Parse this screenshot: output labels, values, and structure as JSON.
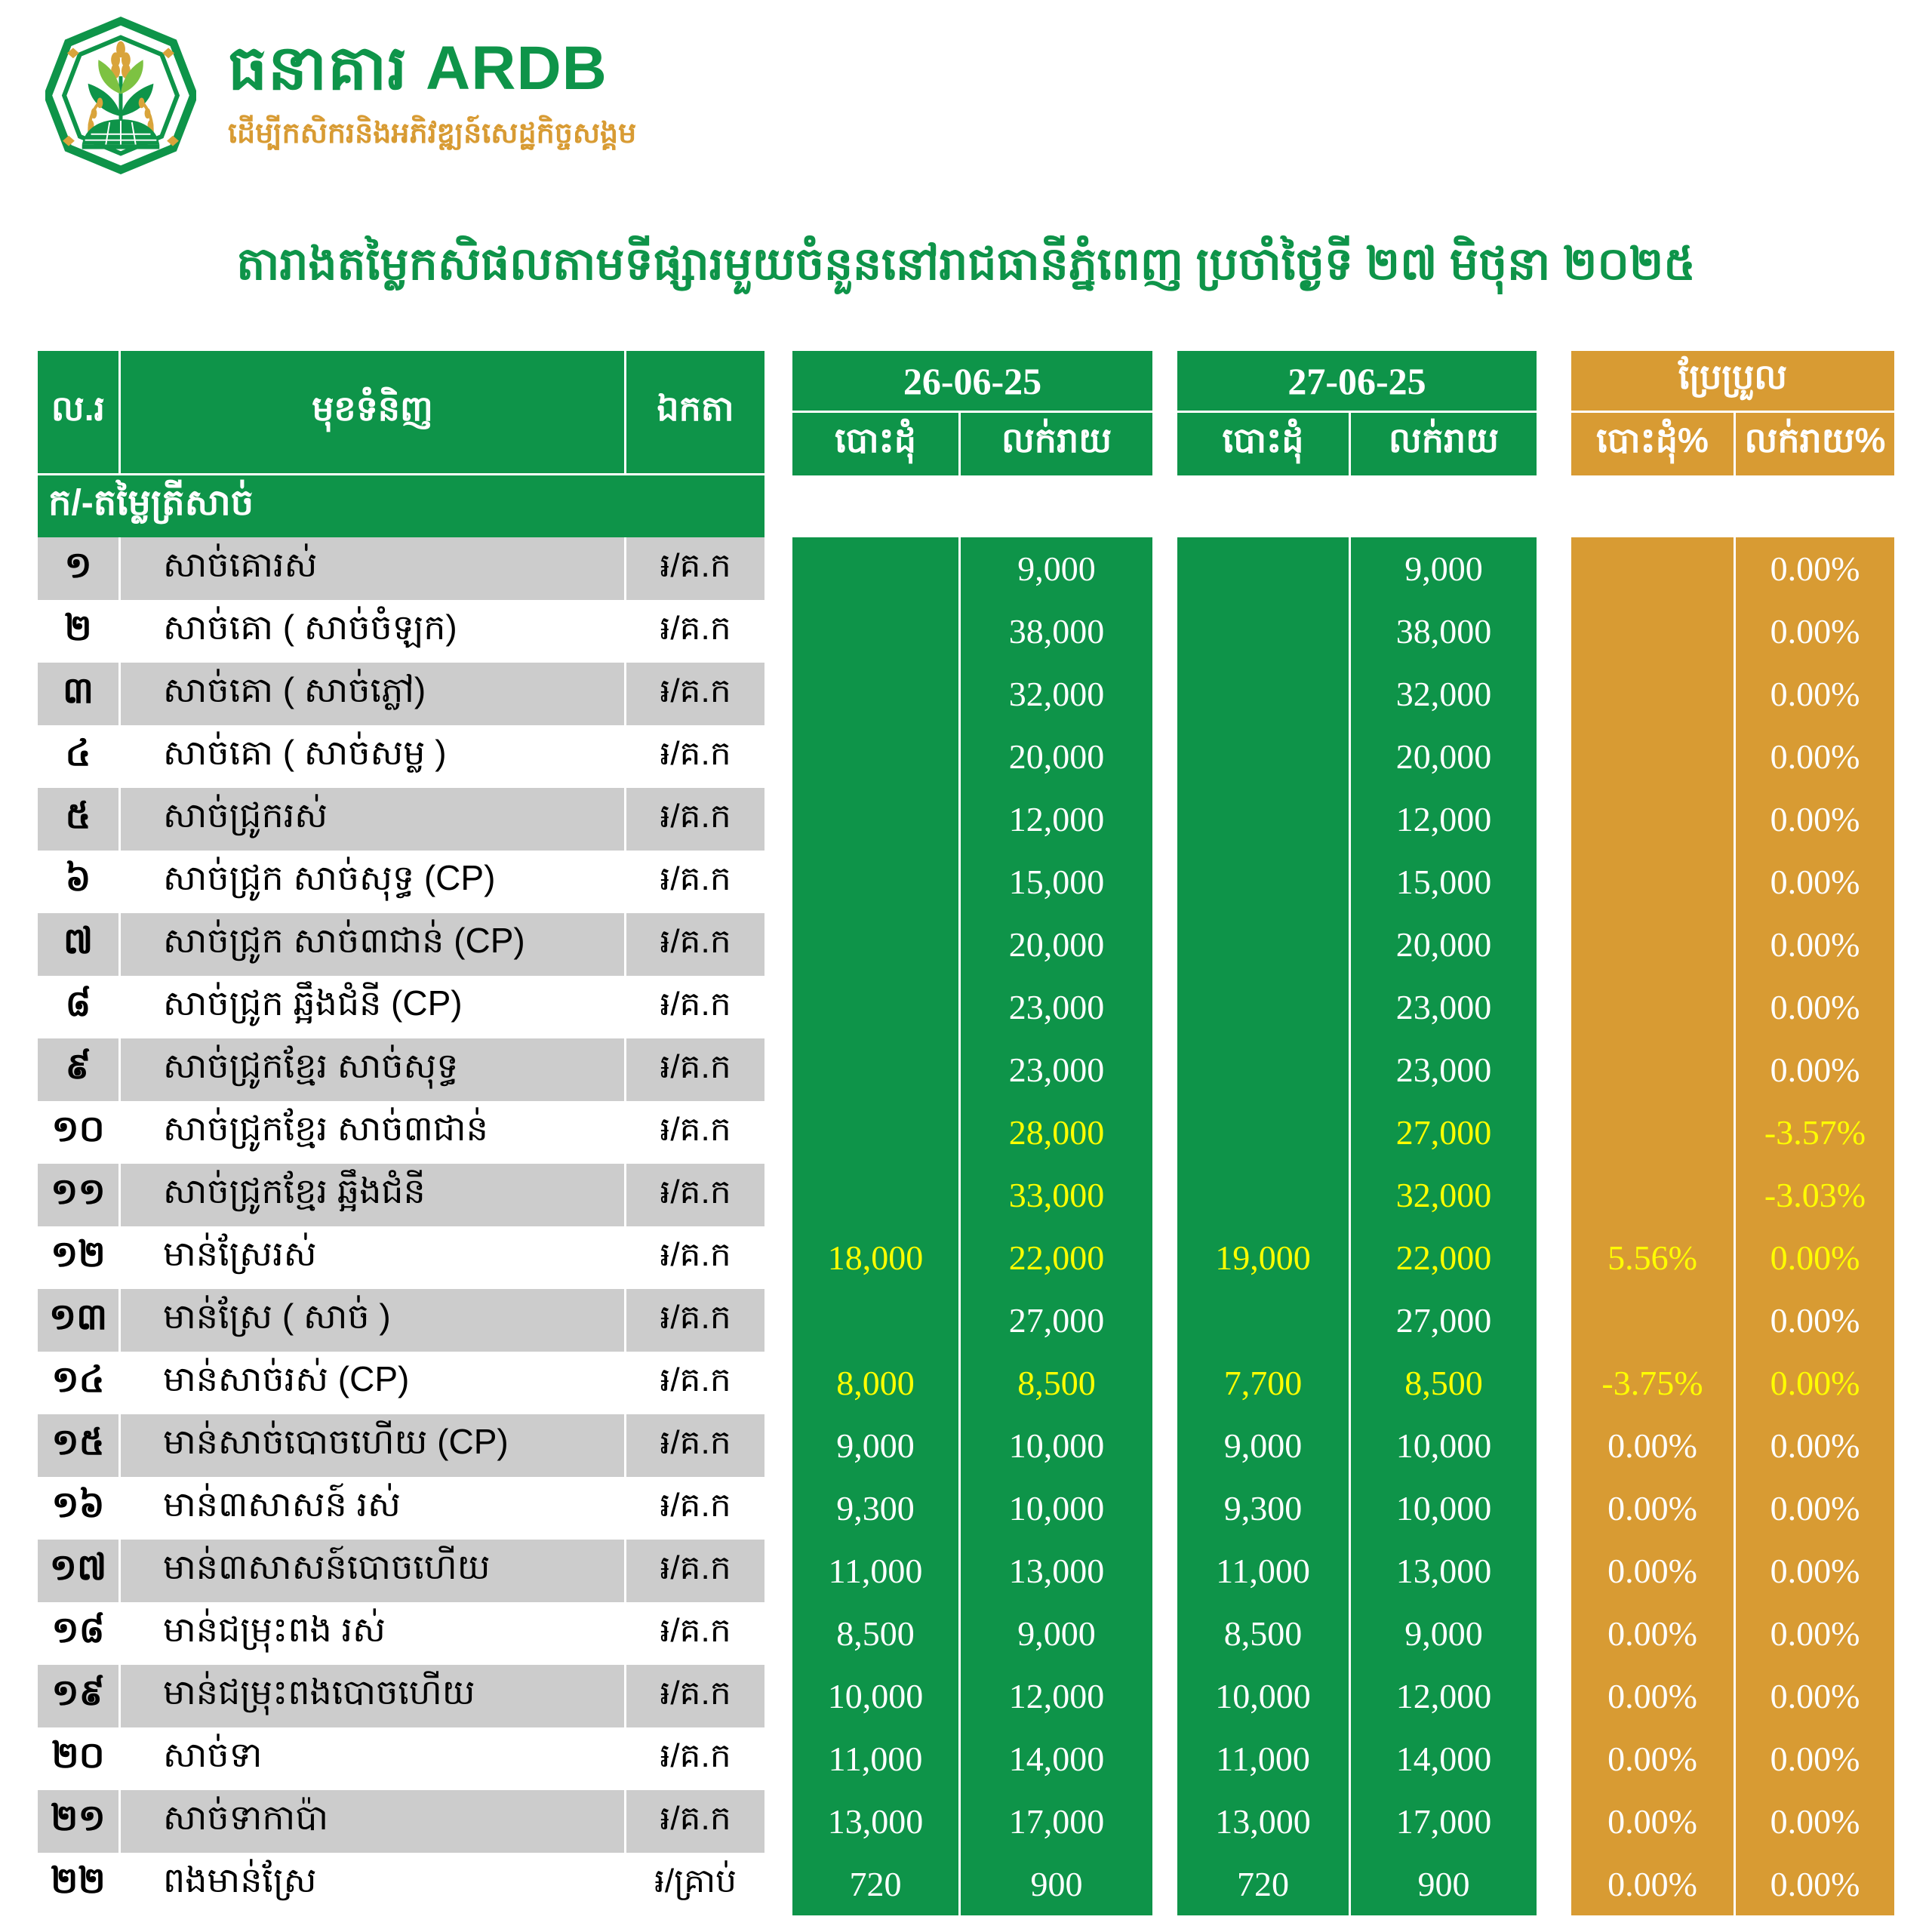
{
  "colors": {
    "green": "#0E9449",
    "gold": "#D89B33",
    "stripe": "#CCCCCC",
    "yellow": "#FFFF00"
  },
  "brand": {
    "name": "ធនាគារ ARDB",
    "tagline": "ដើម្បីកសិករនិងអភិវឌ្ឍន៍សេដ្ឋកិច្ចសង្គម"
  },
  "title": "តារាងតម្លៃកសិផលតាមទីផ្សារមួយចំនួននៅរាជធានីភ្នំពេញ ប្រចាំថ្ងៃទី ២៧ មិថុនា ២០២៥",
  "table": {
    "columns": {
      "no": "ល.រ",
      "item": "មុខទំនិញ",
      "unit": "ឯកតា"
    },
    "date_groups": [
      {
        "date": "26-06-25",
        "wholesale": "បោះដុំ",
        "retail": "លក់រាយ"
      },
      {
        "date": "27-06-25",
        "wholesale": "បោះដុំ",
        "retail": "លក់រាយ"
      }
    ],
    "change_group": {
      "title": "ប្រែប្រួល",
      "wholesale": "បោះដុំ%",
      "retail": "លក់រាយ%"
    },
    "section": "ក/-តម្លៃត្រីសាច់",
    "rows": [
      {
        "no": "១",
        "item": "សាច់គោរស់",
        "unit": "៛/គ.ក",
        "d1w": "",
        "d1r": "9,000",
        "d2w": "",
        "d2r": "9,000",
        "cw": "",
        "cr": "0.00%",
        "hl": []
      },
      {
        "no": "២",
        "item": "សាច់គោ ( សាច់ចំឡក)",
        "unit": "៛/គ.ក",
        "d1w": "",
        "d1r": "38,000",
        "d2w": "",
        "d2r": "38,000",
        "cw": "",
        "cr": "0.00%",
        "hl": []
      },
      {
        "no": "៣",
        "item": "សាច់គោ ( សាច់ភ្លៅ)",
        "unit": "៛/គ.ក",
        "d1w": "",
        "d1r": "32,000",
        "d2w": "",
        "d2r": "32,000",
        "cw": "",
        "cr": "0.00%",
        "hl": []
      },
      {
        "no": "៤",
        "item": "សាច់គោ ( សាច់សម្ល )",
        "unit": "៛/គ.ក",
        "d1w": "",
        "d1r": "20,000",
        "d2w": "",
        "d2r": "20,000",
        "cw": "",
        "cr": "0.00%",
        "hl": []
      },
      {
        "no": "៥",
        "item": "សាច់ជ្រូករស់",
        "unit": "៛/គ.ក",
        "d1w": "",
        "d1r": "12,000",
        "d2w": "",
        "d2r": "12,000",
        "cw": "",
        "cr": "0.00%",
        "hl": []
      },
      {
        "no": "៦",
        "item": "សាច់ជ្រូក សាច់សុទ្ធ (CP)",
        "unit": "៛/គ.ក",
        "d1w": "",
        "d1r": "15,000",
        "d2w": "",
        "d2r": "15,000",
        "cw": "",
        "cr": "0.00%",
        "hl": []
      },
      {
        "no": "៧",
        "item": "សាច់ជ្រូក សាច់៣ជាន់ (CP)",
        "unit": "៛/គ.ក",
        "d1w": "",
        "d1r": "20,000",
        "d2w": "",
        "d2r": "20,000",
        "cw": "",
        "cr": "0.00%",
        "hl": []
      },
      {
        "no": "៨",
        "item": "សាច់ជ្រូក ឆ្អឹងជំនី (CP)",
        "unit": "៛/គ.ក",
        "d1w": "",
        "d1r": "23,000",
        "d2w": "",
        "d2r": "23,000",
        "cw": "",
        "cr": "0.00%",
        "hl": []
      },
      {
        "no": "៩",
        "item": "សាច់ជ្រូកខ្មែរ សាច់សុទ្ធ",
        "unit": "៛/គ.ក",
        "d1w": "",
        "d1r": "23,000",
        "d2w": "",
        "d2r": "23,000",
        "cw": "",
        "cr": "0.00%",
        "hl": []
      },
      {
        "no": "១០",
        "item": "សាច់ជ្រូកខ្មែរ សាច់៣ជាន់",
        "unit": "៛/គ.ក",
        "d1w": "",
        "d1r": "28,000",
        "d2w": "",
        "d2r": "27,000",
        "cw": "",
        "cr": "-3.57%",
        "hl": [
          "d1r",
          "d2r",
          "cr"
        ]
      },
      {
        "no": "១១",
        "item": "សាច់ជ្រូកខ្មែរ ឆ្អឹងជំនី",
        "unit": "៛/គ.ក",
        "d1w": "",
        "d1r": "33,000",
        "d2w": "",
        "d2r": "32,000",
        "cw": "",
        "cr": "-3.03%",
        "hl": [
          "d1r",
          "d2r",
          "cr"
        ]
      },
      {
        "no": "១២",
        "item": "មាន់ស្រែរស់",
        "unit": "៛/គ.ក",
        "d1w": "18,000",
        "d1r": "22,000",
        "d2w": "19,000",
        "d2r": "22,000",
        "cw": "5.56%",
        "cr": "0.00%",
        "hl": [
          "d1w",
          "d1r",
          "d2w",
          "d2r",
          "cw",
          "cr"
        ]
      },
      {
        "no": "១៣",
        "item": "មាន់ស្រែ ( សាច់ )",
        "unit": "៛/គ.ក",
        "d1w": "",
        "d1r": "27,000",
        "d2w": "",
        "d2r": "27,000",
        "cw": "",
        "cr": "0.00%",
        "hl": []
      },
      {
        "no": "១៤",
        "item": "មាន់សាច់រស់ (CP)",
        "unit": "៛/គ.ក",
        "d1w": "8,000",
        "d1r": "8,500",
        "d2w": "7,700",
        "d2r": "8,500",
        "cw": "-3.75%",
        "cr": "0.00%",
        "hl": [
          "d1w",
          "d1r",
          "d2w",
          "d2r",
          "cw",
          "cr"
        ]
      },
      {
        "no": "១៥",
        "item": "មាន់សាច់បោចហើយ (CP)",
        "unit": "៛/គ.ក",
        "d1w": "9,000",
        "d1r": "10,000",
        "d2w": "9,000",
        "d2r": "10,000",
        "cw": "0.00%",
        "cr": "0.00%",
        "hl": []
      },
      {
        "no": "១៦",
        "item": "មាន់៣សាសន៍ រស់",
        "unit": "៛/គ.ក",
        "d1w": "9,300",
        "d1r": "10,000",
        "d2w": "9,300",
        "d2r": "10,000",
        "cw": "0.00%",
        "cr": "0.00%",
        "hl": []
      },
      {
        "no": "១៧",
        "item": "មាន់៣សាសន៍បោចហើយ",
        "unit": "៛/គ.ក",
        "d1w": "11,000",
        "d1r": "13,000",
        "d2w": "11,000",
        "d2r": "13,000",
        "cw": "0.00%",
        "cr": "0.00%",
        "hl": []
      },
      {
        "no": "១៨",
        "item": "មាន់ជម្រុះពង រស់",
        "unit": "៛/គ.ក",
        "d1w": "8,500",
        "d1r": "9,000",
        "d2w": "8,500",
        "d2r": "9,000",
        "cw": "0.00%",
        "cr": "0.00%",
        "hl": []
      },
      {
        "no": "១៩",
        "item": "មាន់ជម្រុះពងបោចហើយ",
        "unit": "៛/គ.ក",
        "d1w": "10,000",
        "d1r": "12,000",
        "d2w": "10,000",
        "d2r": "12,000",
        "cw": "0.00%",
        "cr": "0.00%",
        "hl": []
      },
      {
        "no": "២០",
        "item": "សាច់ទា",
        "unit": "៛/គ.ក",
        "d1w": "11,000",
        "d1r": "14,000",
        "d2w": "11,000",
        "d2r": "14,000",
        "cw": "0.00%",
        "cr": "0.00%",
        "hl": []
      },
      {
        "no": "២១",
        "item": "សាច់ទាកាប៉ា",
        "unit": "៛/គ.ក",
        "d1w": "13,000",
        "d1r": "17,000",
        "d2w": "13,000",
        "d2r": "17,000",
        "cw": "0.00%",
        "cr": "0.00%",
        "hl": []
      },
      {
        "no": "២២",
        "item": "ពងមាន់ស្រែ",
        "unit": "៛/គ្រាប់",
        "d1w": "720",
        "d1r": "900",
        "d2w": "720",
        "d2r": "900",
        "cw": "0.00%",
        "cr": "0.00%",
        "hl": []
      }
    ]
  }
}
